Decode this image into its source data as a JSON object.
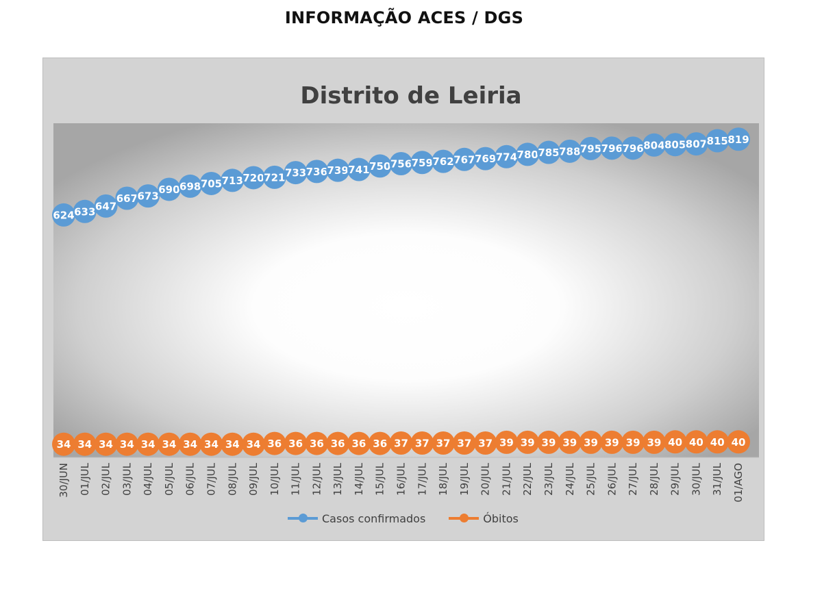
{
  "page": {
    "heading": "INFORMAÇÃO ACES / DGS"
  },
  "chart_data": {
    "type": "line",
    "title": "Distrito de Leiria",
    "xlabel": "",
    "ylabel": "",
    "grid": false,
    "legend_position": "bottom",
    "ylim": [
      0,
      860
    ],
    "categories": [
      "30/JUN",
      "01/JUL",
      "02/JUL",
      "03/JUL",
      "04/JUL",
      "05/JUL",
      "06/JUL",
      "07/JUL",
      "08/JUL",
      "09/JUL",
      "10/JUL",
      "11/JUL",
      "12/JUL",
      "13/JUL",
      "14/JUL",
      "15/JUL",
      "16/JUL",
      "17/JUL",
      "18/JUL",
      "19/JUL",
      "20/JUL",
      "21/JUL",
      "22/JUL",
      "23/JUL",
      "24/JUL",
      "25/JUL",
      "26/JUL",
      "27/JUL",
      "28/JUL",
      "29/JUL",
      "30/JUL",
      "31/JUL",
      "01/AGO"
    ],
    "series": [
      {
        "name": "Casos confirmados",
        "color": "#5b9bd5",
        "values": [
          624,
          633,
          647,
          667,
          673,
          690,
          698,
          705,
          713,
          720,
          721,
          733,
          736,
          739,
          741,
          750,
          756,
          759,
          762,
          767,
          769,
          774,
          780,
          785,
          788,
          795,
          796,
          796,
          804,
          805,
          807,
          815,
          819
        ]
      },
      {
        "name": "Óbitos",
        "color": "#ed7d31",
        "values": [
          34,
          34,
          34,
          34,
          34,
          34,
          34,
          34,
          34,
          34,
          36,
          36,
          36,
          36,
          36,
          36,
          37,
          37,
          37,
          37,
          37,
          39,
          39,
          39,
          39,
          39,
          39,
          39,
          39,
          40,
          40,
          40,
          40
        ]
      }
    ]
  }
}
